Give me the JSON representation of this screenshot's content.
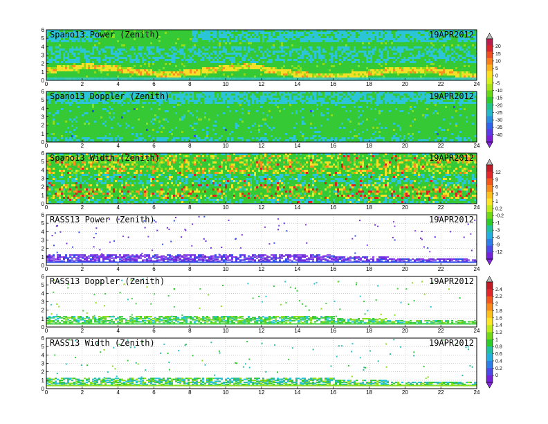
{
  "chart_data": [
    {
      "type": "heatmap",
      "title": "Spano13 Power (Zenith)",
      "date_label": "19APR2012",
      "xlim": [
        0,
        24
      ],
      "ylim": [
        0,
        6
      ],
      "x_ticks": [
        "0",
        "2",
        "4",
        "6",
        "8",
        "10",
        "12",
        "14",
        "16",
        "18",
        "20",
        "22",
        "24"
      ],
      "y_ticks": [
        "0",
        "1",
        "2",
        "3",
        "4",
        "5",
        "6"
      ],
      "colorbar": "cb1",
      "style": "power",
      "grid": false
    },
    {
      "type": "heatmap",
      "title": "Spano13 Doppler (Zenith)",
      "date_label": "19APR2012",
      "xlim": [
        0,
        24
      ],
      "ylim": [
        0,
        6
      ],
      "x_ticks": [
        "0",
        "2",
        "4",
        "6",
        "8",
        "10",
        "12",
        "14",
        "16",
        "18",
        "20",
        "22",
        "24"
      ],
      "y_ticks": [
        "0",
        "1",
        "2",
        "3",
        "4",
        "5",
        "6"
      ],
      "colorbar": "cb1",
      "style": "doppler",
      "grid": false
    },
    {
      "type": "heatmap",
      "title": "Spano13 Width (Zenith)",
      "date_label": "19APR2012",
      "xlim": [
        0,
        24
      ],
      "ylim": [
        0,
        6
      ],
      "x_ticks": [
        "0",
        "2",
        "4",
        "6",
        "8",
        "10",
        "12",
        "14",
        "16",
        "18",
        "20",
        "22",
        "24"
      ],
      "y_ticks": [
        "0",
        "1",
        "2",
        "3",
        "4",
        "5",
        "6"
      ],
      "colorbar": "cb2",
      "style": "width",
      "grid": false
    },
    {
      "type": "heatmap",
      "title": "RASS13 Power (Zenith)",
      "date_label": "19APR2012",
      "xlim": [
        0,
        24
      ],
      "ylim": [
        0,
        6
      ],
      "x_ticks": [
        "0",
        "2",
        "4",
        "6",
        "8",
        "10",
        "12",
        "14",
        "16",
        "18",
        "20",
        "22",
        "24"
      ],
      "y_ticks": [
        "0",
        "1",
        "2",
        "3",
        "4",
        "5",
        "6"
      ],
      "colorbar": "cb2",
      "style": "rass_power",
      "grid": true
    },
    {
      "type": "heatmap",
      "title": "RASS13 Doppler (Zenith)",
      "date_label": "19APR2012",
      "xlim": [
        0,
        24
      ],
      "ylim": [
        0,
        6
      ],
      "x_ticks": [
        "0",
        "2",
        "4",
        "6",
        "8",
        "10",
        "12",
        "14",
        "16",
        "18",
        "20",
        "22",
        "24"
      ],
      "y_ticks": [
        "0",
        "1",
        "2",
        "3",
        "4",
        "5",
        "6"
      ],
      "colorbar": "cb3",
      "style": "rass_doppler",
      "grid": true
    },
    {
      "type": "heatmap",
      "title": "RASS13 Width (Zenith)",
      "date_label": "19APR2012",
      "xlim": [
        0,
        24
      ],
      "ylim": [
        0,
        6
      ],
      "x_ticks": [
        "0",
        "2",
        "4",
        "6",
        "8",
        "10",
        "12",
        "14",
        "16",
        "18",
        "20",
        "22",
        "24"
      ],
      "y_ticks": [
        "0",
        "1",
        "2",
        "3",
        "4",
        "5",
        "6"
      ],
      "colorbar": "cb3",
      "style": "rass_width",
      "grid": true
    }
  ],
  "colorbars": {
    "cb1": {
      "labels": [
        "20",
        "15",
        "10",
        "5",
        "0",
        "-5",
        "-10",
        "-15",
        "-20",
        "-25",
        "-30",
        "-35",
        "-40"
      ],
      "colors": [
        "#b81e4e",
        "#d8242c",
        "#ee4f22",
        "#f77f1d",
        "#fbb41d",
        "#fde023",
        "#d7ef1c",
        "#a8e31a",
        "#6ad61a",
        "#2ecb2a",
        "#20c48a",
        "#26b8c8",
        "#2a8ee0",
        "#3063e8",
        "#5a3be6",
        "#7b1fd6"
      ],
      "top_arrow": "#c0c0c0",
      "bottom_arrow": "#8a2be2"
    },
    "cb2": {
      "labels": [
        "12",
        "9",
        "6",
        "3",
        "1",
        "0.2",
        "-0.2",
        "-1",
        "-3",
        "-6",
        "-9",
        "-12"
      ],
      "colors": [
        "#c01c28",
        "#e0282c",
        "#f2581e",
        "#f88a1c",
        "#fbc01e",
        "#fde62a",
        "#bfeb1c",
        "#74d81a",
        "#2ecb2a",
        "#20c0a0",
        "#27aee0",
        "#2d7fe6",
        "#4b4ae6",
        "#7422d8"
      ],
      "top_arrow": "#c0c0c0",
      "bottom_arrow": "#8a2be2"
    },
    "cb3": {
      "labels": [
        "2.4",
        "2.2",
        "2",
        "1.8",
        "1.6",
        "1.4",
        "1.2",
        "1",
        "0.8",
        "0.6",
        "0.4",
        "0.2",
        "0"
      ],
      "colors": [
        "#c01c28",
        "#e0282c",
        "#f2581e",
        "#f88a1c",
        "#fbc01e",
        "#fde62a",
        "#bfeb1c",
        "#74d81a",
        "#2ecb2a",
        "#20c0a0",
        "#27aee0",
        "#2d7fe6",
        "#4b4ae6",
        "#7422d8"
      ],
      "top_arrow": "#c0c0c0",
      "bottom_arrow": "#8a2be2"
    }
  },
  "palette": {
    "cyan": "#2cc5d8",
    "green": "#35c935",
    "lightgreen": "#8ade1e",
    "yellow": "#f5e028",
    "orange": "#f79020",
    "red": "#e02020",
    "purple": "#7030e0",
    "blue": "#3050e8"
  }
}
